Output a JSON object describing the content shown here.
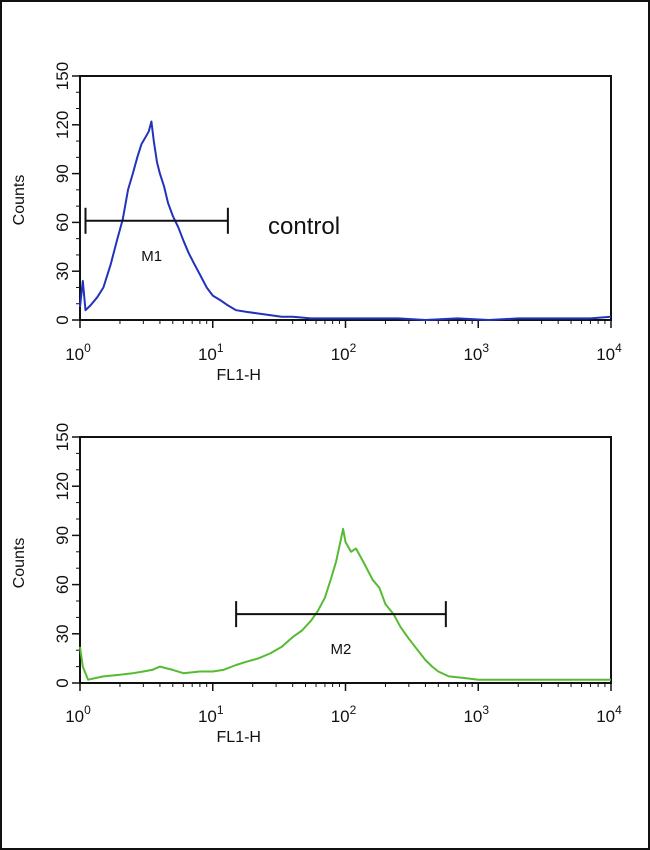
{
  "chart_data": [
    {
      "type": "line",
      "scale_x": "log",
      "xlim": [
        1,
        10000
      ],
      "ylim": [
        0,
        150
      ],
      "xlabel": "FL1-H",
      "ylabel": "Counts",
      "x_tick_labels": [
        {
          "base": "10",
          "exp": "0"
        },
        {
          "base": "10",
          "exp": "1"
        },
        {
          "base": "10",
          "exp": "2"
        },
        {
          "base": "10",
          "exp": "3"
        },
        {
          "base": "10",
          "exp": "4"
        }
      ],
      "y_tick_labels": [
        "0",
        "30",
        "60",
        "90",
        "120",
        "150"
      ],
      "annotation": "control",
      "gate": {
        "label": "M1",
        "x_start": 1.1,
        "x_end": 13,
        "y": 61
      },
      "series": [
        {
          "color": "#2233bb",
          "x": [
            1.0,
            1.05,
            1.1,
            1.2,
            1.35,
            1.5,
            1.7,
            1.9,
            2.1,
            2.3,
            2.5,
            2.7,
            2.9,
            3.1,
            3.3,
            3.45,
            3.6,
            3.8,
            4.0,
            4.3,
            4.6,
            5.0,
            5.5,
            6.0,
            6.6,
            7.2,
            8.0,
            9.0,
            10.0,
            11.5,
            13,
            15,
            18,
            22,
            27,
            33,
            40,
            55,
            70,
            100,
            150,
            250,
            400,
            700,
            1200,
            2000,
            4000,
            7000,
            10000
          ],
          "y": [
            8,
            24,
            6,
            9,
            14,
            20,
            34,
            49,
            62,
            80,
            90,
            100,
            108,
            112,
            116,
            122,
            110,
            97,
            90,
            82,
            72,
            64,
            57,
            49,
            41,
            35,
            28,
            20,
            15,
            12,
            9,
            6,
            5,
            4,
            3,
            2,
            2,
            1,
            1,
            1,
            1,
            1,
            0,
            1,
            0,
            1,
            1,
            1,
            2
          ]
        }
      ]
    },
    {
      "type": "line",
      "scale_x": "log",
      "xlim": [
        1,
        10000
      ],
      "ylim": [
        0,
        150
      ],
      "xlabel": "FL1-H",
      "ylabel": "Counts",
      "x_tick_labels": [
        {
          "base": "10",
          "exp": "0"
        },
        {
          "base": "10",
          "exp": "1"
        },
        {
          "base": "10",
          "exp": "2"
        },
        {
          "base": "10",
          "exp": "3"
        },
        {
          "base": "10",
          "exp": "4"
        }
      ],
      "y_tick_labels": [
        "0",
        "30",
        "60",
        "90",
        "120",
        "150"
      ],
      "gate": {
        "label": "M2",
        "x_start": 15,
        "x_end": 570,
        "y": 42
      },
      "series": [
        {
          "color": "#55bb33",
          "x": [
            1.0,
            1.05,
            1.15,
            1.3,
            1.5,
            2.0,
            2.5,
            3.0,
            3.5,
            4.0,
            5.0,
            6.0,
            8.0,
            10,
            12,
            15,
            18,
            22,
            27,
            33,
            40,
            47,
            55,
            62,
            70,
            78,
            85,
            92,
            96,
            100,
            110,
            120,
            140,
            160,
            180,
            200,
            230,
            260,
            300,
            350,
            400,
            450,
            500,
            600,
            800,
            1000,
            1500,
            2500,
            4000,
            7000,
            10000
          ],
          "y": [
            22,
            10,
            2,
            3,
            4,
            5,
            6,
            7,
            8,
            10,
            8,
            6,
            7,
            7,
            8,
            11,
            13,
            15,
            18,
            22,
            28,
            32,
            38,
            44,
            52,
            64,
            74,
            87,
            94,
            86,
            80,
            82,
            72,
            63,
            58,
            48,
            42,
            34,
            27,
            20,
            14,
            10,
            7,
            4,
            3,
            2,
            2,
            2,
            2,
            2,
            2
          ]
        }
      ]
    }
  ]
}
